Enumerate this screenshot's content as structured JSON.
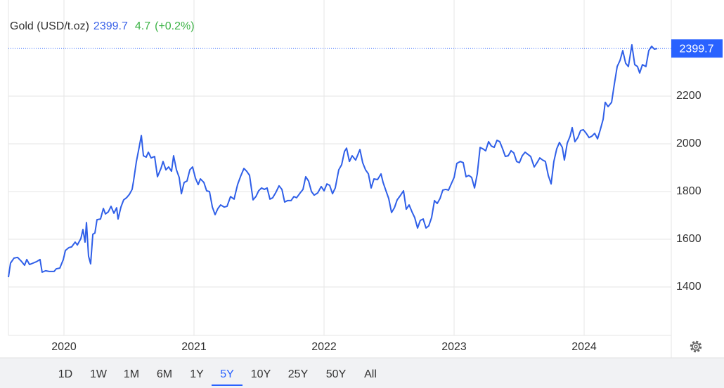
{
  "chart_data": {
    "type": "line",
    "price": 2399.7,
    "change": 4.7,
    "change_pct": {
      "value": 0.2,
      "label": "(+0.2%)"
    },
    "x": [
      2019.573,
      2019.589,
      2019.616,
      2019.643,
      2019.67,
      2019.697,
      2019.714,
      2019.735,
      2019.762,
      2019.789,
      2019.816,
      2019.832,
      2019.859,
      2019.886,
      2019.924,
      2019.941,
      2019.968,
      2019.995,
      2020.011,
      2020.038,
      2020.059,
      2020.086,
      2020.103,
      2020.13,
      2020.146,
      2020.162,
      2020.173,
      2020.189,
      2020.205,
      2020.222,
      2020.238,
      2020.254,
      2020.281,
      2020.303,
      2020.319,
      2020.341,
      2020.362,
      2020.384,
      2020.405,
      2020.416,
      2020.438,
      2020.459,
      2020.481,
      2020.503,
      2020.524,
      2020.535,
      2020.557,
      2020.578,
      2020.595,
      2020.611,
      2020.632,
      2020.649,
      2020.67,
      2020.697,
      2020.719,
      2020.746,
      2020.762,
      2020.784,
      2020.805,
      2020.827,
      2020.843,
      2020.865,
      2020.886,
      2020.903,
      2020.924,
      2020.946,
      2020.968,
      2020.989,
      2021.011,
      2021.032,
      2021.049,
      2021.076,
      2021.097,
      2021.119,
      2021.141,
      2021.162,
      2021.184,
      2021.205,
      2021.232,
      2021.254,
      2021.281,
      2021.308,
      2021.335,
      2021.357,
      2021.384,
      2021.405,
      2021.427,
      2021.454,
      2021.476,
      2021.497,
      2021.519,
      2021.541,
      2021.562,
      2021.584,
      2021.605,
      2021.627,
      2021.654,
      2021.676,
      2021.697,
      2021.719,
      2021.746,
      2021.768,
      2021.789,
      2021.816,
      2021.838,
      2021.859,
      2021.881,
      2021.903,
      2021.924,
      2021.951,
      2021.978,
      2022.0,
      2022.022,
      2022.043,
      2022.065,
      2022.086,
      2022.113,
      2022.135,
      2022.157,
      2022.173,
      2022.195,
      2022.216,
      2022.243,
      2022.276,
      2022.297,
      2022.319,
      2022.341,
      2022.362,
      2022.384,
      2022.411,
      2022.438,
      2022.454,
      2022.476,
      2022.497,
      2022.519,
      2022.541,
      2022.562,
      2022.589,
      2022.611,
      2022.632,
      2022.654,
      2022.676,
      2022.697,
      2022.719,
      2022.74,
      2022.762,
      2022.784,
      2022.805,
      2022.827,
      2022.849,
      2022.87,
      2022.892,
      2022.913,
      2022.935,
      2022.957,
      2022.978,
      2023.0,
      2023.021,
      2023.048,
      2023.07,
      2023.092,
      2023.113,
      2023.135,
      2023.157,
      2023.178,
      2023.2,
      2023.221,
      2023.243,
      2023.265,
      2023.286,
      2023.308,
      2023.33,
      2023.351,
      2023.373,
      2023.394,
      2023.416,
      2023.438,
      2023.459,
      2023.481,
      2023.502,
      2023.524,
      2023.546,
      2023.567,
      2023.589,
      2023.616,
      2023.638,
      2023.659,
      2023.681,
      2023.702,
      2023.724,
      2023.746,
      2023.767,
      2023.789,
      2023.81,
      2023.832,
      2023.848,
      2023.87,
      2023.892,
      2023.908,
      2023.929,
      2023.951,
      2023.973,
      2023.994,
      2024.016,
      2024.038,
      2024.059,
      2024.081,
      2024.103,
      2024.124,
      2024.146,
      2024.162,
      2024.184,
      2024.211,
      2024.232,
      2024.254,
      2024.276,
      2024.297,
      2024.319,
      2024.34,
      2024.367,
      2024.389,
      2024.41,
      2024.427,
      2024.448,
      2024.475,
      2024.497,
      2024.519,
      2024.54,
      2024.562
    ],
    "series": [
      {
        "name": "Gold (USD/t.oz)",
        "color": "#2f5fe8",
        "values": [
          1441,
          1500,
          1521,
          1524,
          1509,
          1491,
          1515,
          1494,
          1500,
          1506,
          1515,
          1462,
          1468,
          1465,
          1465,
          1476,
          1479,
          1515,
          1553,
          1565,
          1568,
          1588,
          1576,
          1603,
          1641,
          1588,
          1670,
          1529,
          1497,
          1621,
          1626,
          1682,
          1685,
          1729,
          1706,
          1715,
          1738,
          1709,
          1732,
          1685,
          1735,
          1765,
          1774,
          1788,
          1809,
          1844,
          1926,
          1985,
          2035,
          1950,
          1944,
          1965,
          1941,
          1947,
          1862,
          1897,
          1926,
          1891,
          1903,
          1885,
          1950,
          1891,
          1859,
          1791,
          1838,
          1844,
          1891,
          1903,
          1856,
          1829,
          1853,
          1838,
          1803,
          1800,
          1735,
          1703,
          1729,
          1744,
          1735,
          1738,
          1779,
          1768,
          1829,
          1862,
          1897,
          1885,
          1868,
          1765,
          1779,
          1803,
          1815,
          1809,
          1815,
          1768,
          1774,
          1794,
          1824,
          1809,
          1756,
          1762,
          1762,
          1779,
          1774,
          1794,
          1809,
          1862,
          1844,
          1800,
          1785,
          1794,
          1821,
          1803,
          1832,
          1826,
          1791,
          1815,
          1891,
          1912,
          1968,
          1982,
          1926,
          1950,
          1932,
          1976,
          1921,
          1891,
          1874,
          1815,
          1853,
          1850,
          1874,
          1838,
          1803,
          1771,
          1712,
          1732,
          1765,
          1785,
          1803,
          1726,
          1744,
          1715,
          1691,
          1647,
          1679,
          1685,
          1647,
          1656,
          1691,
          1762,
          1750,
          1771,
          1806,
          1809,
          1806,
          1832,
          1859,
          1918,
          1926,
          1921,
          1862,
          1868,
          1859,
          1815,
          1874,
          1985,
          1979,
          1971,
          2009,
          1991,
          1985,
          2015,
          2009,
          1979,
          1947,
          1950,
          1971,
          1962,
          1926,
          1921,
          1950,
          1965,
          1956,
          1947,
          1903,
          1921,
          1941,
          1932,
          1926,
          1868,
          1832,
          1926,
          1979,
          2006,
          1985,
          1932,
          2003,
          2032,
          2068,
          2009,
          2026,
          2056,
          2059,
          2044,
          2026,
          2032,
          2044,
          2021,
          2059,
          2103,
          2174,
          2156,
          2174,
          2250,
          2324,
          2350,
          2391,
          2338,
          2324,
          2415,
          2332,
          2324,
          2297,
          2332,
          2324,
          2391,
          2409,
          2397,
          2399.7
        ]
      }
    ],
    "xlim": [
      2019.573,
      2024.67
    ],
    "xticks": [
      2020,
      2021,
      2022,
      2023,
      2024
    ],
    "ylim": [
      1197,
      2603
    ],
    "yticks": [
      1400,
      1600,
      1800,
      2000,
      2200
    ],
    "grid": true,
    "ranges": [
      "1D",
      "1W",
      "1M",
      "6M",
      "1Y",
      "5Y",
      "10Y",
      "25Y",
      "50Y",
      "All"
    ],
    "selected_range": 5
  }
}
